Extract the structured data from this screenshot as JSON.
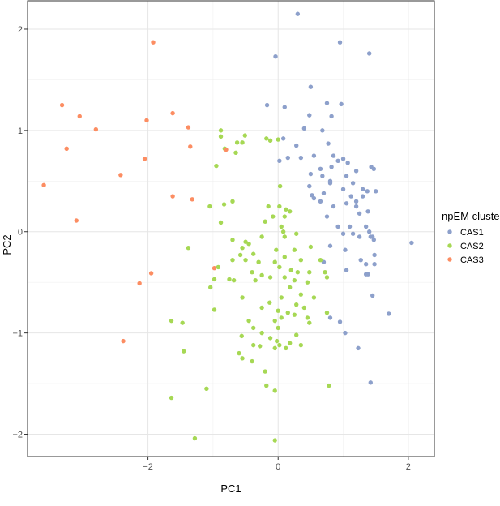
{
  "chart_data": {
    "type": "scatter",
    "xlabel": "PC1",
    "ylabel": "PC2",
    "xlim": [
      -3.85,
      2.4
    ],
    "ylim": [
      -2.22,
      2.28
    ],
    "x_ticks": [
      -2,
      0,
      2
    ],
    "y_ticks": [
      -2,
      -1,
      0,
      1,
      2
    ],
    "x_tick_labels": [
      "−2",
      "0",
      "2"
    ],
    "y_tick_labels": [
      "−2",
      "−1",
      "0",
      "1",
      "2"
    ],
    "grid": true,
    "legend": {
      "title": "npEM cluster",
      "position": "right"
    },
    "series": [
      {
        "name": "CAS1",
        "color": "#8DA0CB",
        "points": [
          [
            0.3,
            2.15
          ],
          [
            -0.04,
            1.73
          ],
          [
            0.95,
            1.87
          ],
          [
            1.4,
            1.76
          ],
          [
            0.5,
            1.43
          ],
          [
            -0.17,
            1.25
          ],
          [
            0.1,
            1.23
          ],
          [
            0.75,
            1.27
          ],
          [
            0.97,
            1.26
          ],
          [
            0.82,
            1.14
          ],
          [
            0.48,
            1.15
          ],
          [
            0.4,
            1.02
          ],
          [
            0.08,
            0.92
          ],
          [
            0.28,
            0.85
          ],
          [
            0.68,
            1.0
          ],
          [
            0.77,
            0.87
          ],
          [
            0.02,
            0.7
          ],
          [
            0.15,
            0.73
          ],
          [
            0.35,
            0.73
          ],
          [
            0.55,
            0.75
          ],
          [
            0.85,
            0.75
          ],
          [
            0.92,
            0.7
          ],
          [
            1.0,
            0.72
          ],
          [
            1.07,
            0.68
          ],
          [
            0.65,
            0.62
          ],
          [
            0.82,
            0.64
          ],
          [
            1.2,
            0.6
          ],
          [
            1.43,
            0.64
          ],
          [
            1.47,
            0.62
          ],
          [
            0.5,
            0.57
          ],
          [
            0.68,
            0.55
          ],
          [
            0.8,
            0.5
          ],
          [
            1.05,
            0.55
          ],
          [
            1.15,
            0.48
          ],
          [
            1.3,
            0.42
          ],
          [
            0.48,
            0.45
          ],
          [
            0.52,
            0.36
          ],
          [
            0.7,
            0.38
          ],
          [
            0.8,
            0.48
          ],
          [
            1.0,
            0.42
          ],
          [
            1.12,
            0.35
          ],
          [
            1.2,
            0.3
          ],
          [
            1.3,
            0.35
          ],
          [
            1.37,
            0.4
          ],
          [
            1.5,
            0.4
          ],
          [
            0.55,
            0.33
          ],
          [
            0.65,
            0.3
          ],
          [
            0.85,
            0.25
          ],
          [
            1.05,
            0.28
          ],
          [
            1.2,
            0.25
          ],
          [
            1.25,
            0.18
          ],
          [
            1.38,
            0.2
          ],
          [
            0.75,
            0.15
          ],
          [
            1.1,
            0.05
          ],
          [
            1.15,
            -0.02
          ],
          [
            1.35,
            0.05
          ],
          [
            1.25,
            -0.05
          ],
          [
            1.4,
            0.0
          ],
          [
            1.45,
            -0.05
          ],
          [
            0.92,
            0.05
          ],
          [
            1.0,
            -0.02
          ],
          [
            1.47,
            -0.08
          ],
          [
            1.42,
            -0.05
          ],
          [
            0.8,
            -0.14
          ],
          [
            1.03,
            -0.18
          ],
          [
            2.05,
            -0.11
          ],
          [
            1.48,
            -0.23
          ],
          [
            1.27,
            -0.28
          ],
          [
            1.35,
            -0.32
          ],
          [
            1.48,
            -0.32
          ],
          [
            0.7,
            -0.3
          ],
          [
            1.05,
            -0.38
          ],
          [
            1.35,
            -0.42
          ],
          [
            1.38,
            -0.42
          ],
          [
            1.45,
            -0.63
          ],
          [
            1.7,
            -0.81
          ],
          [
            0.8,
            -0.85
          ],
          [
            0.95,
            -0.89
          ],
          [
            1.03,
            -1.0
          ],
          [
            1.23,
            -1.15
          ],
          [
            1.42,
            -1.49
          ]
        ]
      },
      {
        "name": "CAS2",
        "color": "#A6D854",
        "points": [
          [
            -0.88,
            1.0
          ],
          [
            -0.88,
            0.94
          ],
          [
            -0.63,
            0.88
          ],
          [
            -0.82,
            0.82
          ],
          [
            -0.65,
            0.78
          ],
          [
            -0.51,
            0.95
          ],
          [
            -0.55,
            0.88
          ],
          [
            -0.18,
            0.92
          ],
          [
            -0.12,
            0.9
          ],
          [
            0.0,
            0.91
          ],
          [
            -0.95,
            0.65
          ],
          [
            0.03,
            0.45
          ],
          [
            -0.7,
            0.3
          ],
          [
            -0.83,
            0.27
          ],
          [
            -1.05,
            0.25
          ],
          [
            -0.15,
            0.25
          ],
          [
            0.02,
            0.25
          ],
          [
            0.12,
            0.22
          ],
          [
            0.18,
            0.2
          ],
          [
            -0.08,
            0.15
          ],
          [
            -0.2,
            0.1
          ],
          [
            0.1,
            0.15
          ],
          [
            -0.88,
            0.09
          ],
          [
            0.05,
            0.05
          ],
          [
            -0.5,
            -0.1
          ],
          [
            -0.45,
            -0.12
          ],
          [
            -0.7,
            -0.08
          ],
          [
            0.08,
            0.0
          ],
          [
            0.28,
            -0.02
          ],
          [
            -0.25,
            -0.05
          ],
          [
            0.1,
            -0.05
          ],
          [
            -0.55,
            -0.16
          ],
          [
            -1.38,
            -0.16
          ],
          [
            -0.03,
            -0.18
          ],
          [
            0.25,
            -0.18
          ],
          [
            0.5,
            -0.15
          ],
          [
            -0.38,
            -0.22
          ],
          [
            -0.5,
            -0.28
          ],
          [
            -0.58,
            -0.23
          ],
          [
            -0.7,
            -0.28
          ],
          [
            -0.92,
            -0.35
          ],
          [
            -0.05,
            -0.3
          ],
          [
            0.1,
            -0.25
          ],
          [
            0.35,
            -0.28
          ],
          [
            0.65,
            -0.28
          ],
          [
            -0.3,
            -0.3
          ],
          [
            -0.4,
            -0.4
          ],
          [
            -0.75,
            -0.47
          ],
          [
            -0.98,
            -0.47
          ],
          [
            -0.68,
            -0.48
          ],
          [
            0.02,
            -0.35
          ],
          [
            0.2,
            -0.38
          ],
          [
            0.3,
            -0.4
          ],
          [
            0.48,
            -0.4
          ],
          [
            0.72,
            -0.4
          ],
          [
            0.75,
            -0.45
          ],
          [
            -0.25,
            -0.43
          ],
          [
            -0.12,
            -0.45
          ],
          [
            -0.35,
            -0.48
          ],
          [
            0.1,
            -0.45
          ],
          [
            0.25,
            -0.48
          ],
          [
            0.45,
            -0.5
          ],
          [
            -1.04,
            -0.55
          ],
          [
            0.18,
            -0.55
          ],
          [
            0.35,
            -0.62
          ],
          [
            -0.55,
            -0.65
          ],
          [
            0.05,
            -0.65
          ],
          [
            0.55,
            -0.65
          ],
          [
            0.28,
            -0.72
          ],
          [
            -0.13,
            -0.7
          ],
          [
            -0.25,
            -0.75
          ],
          [
            0.0,
            -0.78
          ],
          [
            0.15,
            -0.8
          ],
          [
            0.4,
            -0.75
          ],
          [
            -0.98,
            -0.77
          ],
          [
            0.25,
            -0.82
          ],
          [
            0.05,
            -0.85
          ],
          [
            0.45,
            -0.85
          ],
          [
            0.75,
            -0.8
          ],
          [
            -0.05,
            -0.88
          ],
          [
            0.48,
            -0.9
          ],
          [
            -0.45,
            -0.88
          ],
          [
            -0.38,
            -0.95
          ],
          [
            -0.25,
            -1.0
          ],
          [
            0.28,
            -1.02
          ],
          [
            -1.64,
            -0.88
          ],
          [
            -1.47,
            -0.9
          ],
          [
            0.0,
            -0.95
          ],
          [
            -0.56,
            -1.03
          ],
          [
            -0.12,
            -1.05
          ],
          [
            0.18,
            -1.1
          ],
          [
            -0.02,
            -1.08
          ],
          [
            0.02,
            -1.12
          ],
          [
            -0.05,
            -1.15
          ],
          [
            0.12,
            -1.15
          ],
          [
            0.35,
            -1.12
          ],
          [
            -0.38,
            -1.12
          ],
          [
            -0.28,
            -1.13
          ],
          [
            -0.6,
            -1.2
          ],
          [
            -0.55,
            -1.25
          ],
          [
            -0.4,
            -1.28
          ],
          [
            -1.45,
            -1.18
          ],
          [
            -0.2,
            -1.38
          ],
          [
            0.78,
            -1.52
          ],
          [
            -0.18,
            -1.52
          ],
          [
            -0.05,
            -1.57
          ],
          [
            -1.1,
            -1.55
          ],
          [
            -1.64,
            -1.64
          ],
          [
            -1.28,
            -2.04
          ],
          [
            -0.05,
            -2.06
          ]
        ]
      },
      {
        "name": "CAS3",
        "color": "#FC8D62",
        "points": [
          [
            -1.92,
            1.87
          ],
          [
            -3.32,
            1.25
          ],
          [
            -3.05,
            1.14
          ],
          [
            -1.62,
            1.17
          ],
          [
            -2.02,
            1.1
          ],
          [
            -1.38,
            1.03
          ],
          [
            -2.8,
            1.01
          ],
          [
            -3.25,
            0.82
          ],
          [
            -1.35,
            0.84
          ],
          [
            -0.8,
            0.81
          ],
          [
            -2.05,
            0.72
          ],
          [
            -3.6,
            0.46
          ],
          [
            -2.42,
            0.56
          ],
          [
            -1.62,
            0.35
          ],
          [
            -1.32,
            0.32
          ],
          [
            -3.1,
            0.11
          ],
          [
            -0.98,
            -0.36
          ],
          [
            -1.95,
            -0.41
          ],
          [
            -2.13,
            -0.51
          ],
          [
            -2.38,
            -1.08
          ]
        ]
      }
    ]
  }
}
